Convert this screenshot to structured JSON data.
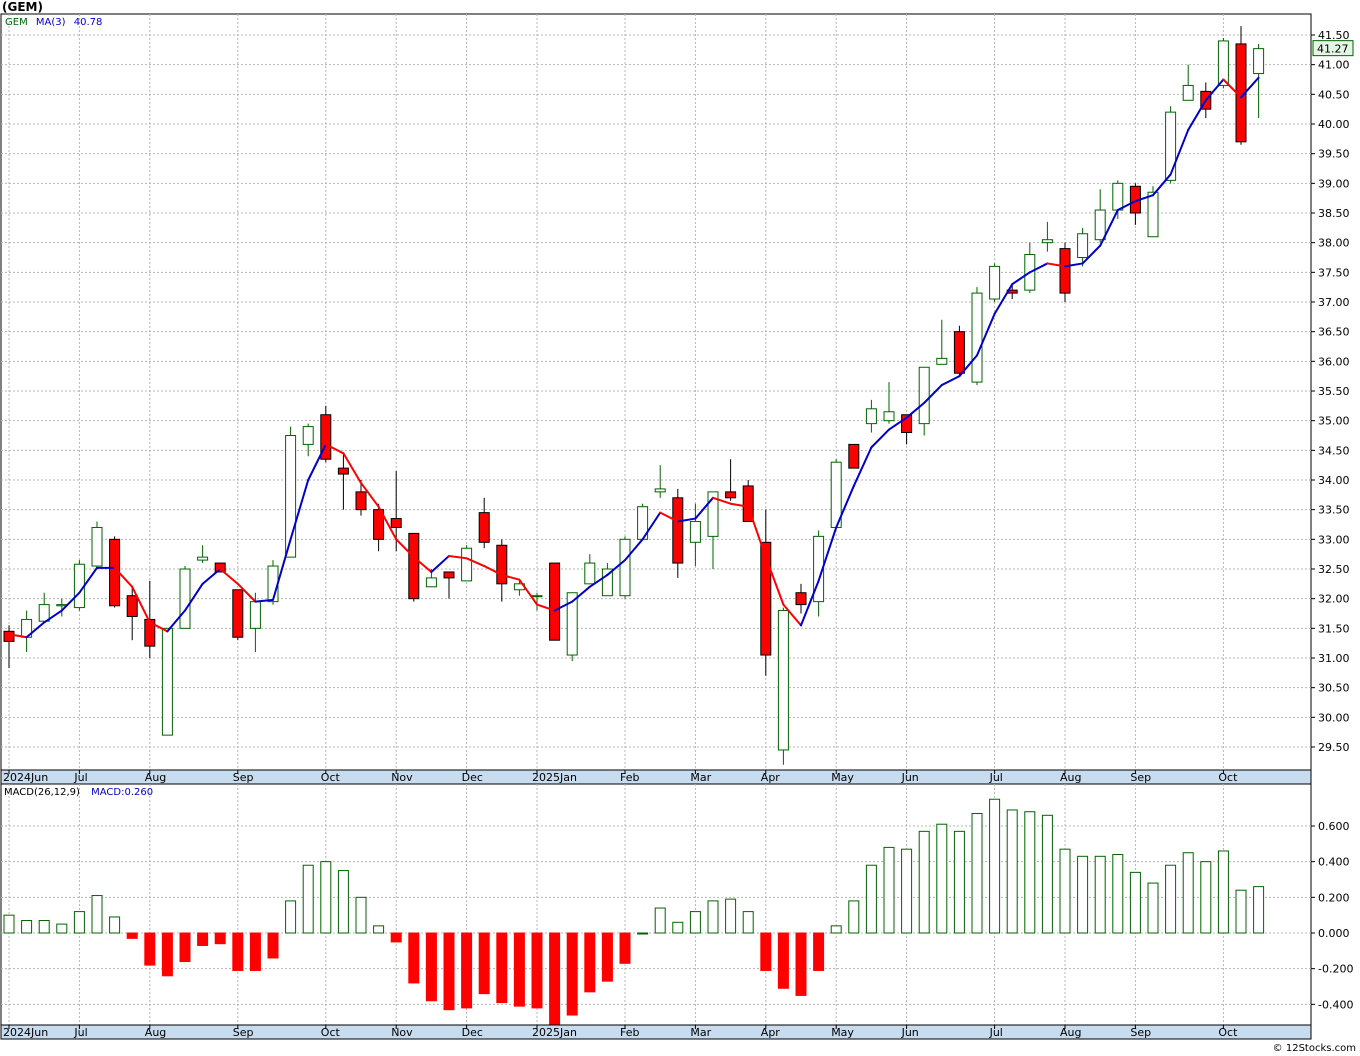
{
  "symbol_title": "(GEM)",
  "credit": "© 12Stocks.com",
  "price_panel": {
    "legend_symbol": "GEM",
    "legend_ma_label": "MA(3)",
    "legend_ma_value": "40.78",
    "last_price_label": "41.27",
    "y_ticks": [
      "29.50",
      "30.00",
      "30.50",
      "31.00",
      "31.50",
      "32.00",
      "32.50",
      "33.00",
      "33.50",
      "34.00",
      "34.50",
      "35.00",
      "35.50",
      "36.00",
      "36.50",
      "37.00",
      "37.50",
      "38.00",
      "38.50",
      "39.00",
      "39.50",
      "40.00",
      "40.50",
      "41.00",
      "41.50"
    ],
    "x_labels": [
      "2024Jun",
      "Jul",
      "Aug",
      "Sep",
      "Oct",
      "Nov",
      "Dec",
      "2025Jan",
      "Feb",
      "Mar",
      "Apr",
      "May",
      "Jun",
      "Jul",
      "Aug",
      "Sep",
      "Oct"
    ]
  },
  "macd_panel": {
    "legend_label": "MACD(26,12,9)",
    "legend_value": "MACD:0.260",
    "y_ticks": [
      "-0.400",
      "-0.200",
      "0.000",
      "0.200",
      "0.400",
      "0.600"
    ],
    "x_labels": [
      "2024Jun",
      "Jul",
      "Aug",
      "Sep",
      "Oct",
      "Nov",
      "Dec",
      "2025Jan",
      "Feb",
      "Mar",
      "Apr",
      "May",
      "Jun",
      "Jul",
      "Aug",
      "Sep",
      "Oct"
    ]
  },
  "colors": {
    "up": "#006400",
    "down": "#ff0000",
    "ma_up": "#0000cc",
    "ma_down": "#ff0000",
    "axis_band": "#c8dcf0",
    "grid": "#b4b4b4",
    "last_price_bg": "#e6f5e6"
  },
  "chart_data": [
    {
      "type": "candlestick",
      "title": "(GEM)",
      "interval": "weekly",
      "x_labels": [
        "2024Jun",
        "Jul",
        "Aug",
        "Sep",
        "Oct",
        "Nov",
        "Dec",
        "2025Jan",
        "Feb",
        "Mar",
        "Apr",
        "May",
        "Jun",
        "Jul",
        "Aug",
        "Sep",
        "Oct"
      ],
      "ylim": [
        29.2,
        41.7
      ],
      "ma_label": "MA(3)",
      "ma_last": 40.78,
      "last_price": 41.27,
      "candles": [
        {
          "o": 31.45,
          "h": 31.55,
          "l": 30.83,
          "c": 31.28
        },
        {
          "o": 31.35,
          "h": 31.8,
          "l": 31.1,
          "c": 31.65
        },
        {
          "o": 31.62,
          "h": 32.1,
          "l": 31.6,
          "c": 31.9
        },
        {
          "o": 31.88,
          "h": 32.0,
          "l": 31.7,
          "c": 31.9
        },
        {
          "o": 31.85,
          "h": 32.65,
          "l": 31.8,
          "c": 32.58
        },
        {
          "o": 32.55,
          "h": 33.3,
          "l": 32.5,
          "c": 33.2
        },
        {
          "o": 33.0,
          "h": 33.05,
          "l": 31.85,
          "c": 31.88
        },
        {
          "o": 32.05,
          "h": 32.2,
          "l": 31.3,
          "c": 31.7
        },
        {
          "o": 31.65,
          "h": 32.3,
          "l": 31.0,
          "c": 31.2
        },
        {
          "o": 29.7,
          "h": 31.5,
          "l": 29.7,
          "c": 31.5
        },
        {
          "o": 31.5,
          "h": 32.55,
          "l": 31.5,
          "c": 32.5
        },
        {
          "o": 32.65,
          "h": 32.9,
          "l": 32.6,
          "c": 32.7
        },
        {
          "o": 32.6,
          "h": 32.6,
          "l": 32.45,
          "c": 32.45
        },
        {
          "o": 32.15,
          "h": 32.15,
          "l": 31.3,
          "c": 31.35
        },
        {
          "o": 31.5,
          "h": 32.1,
          "l": 31.1,
          "c": 31.95
        },
        {
          "o": 31.95,
          "h": 32.65,
          "l": 31.9,
          "c": 32.55
        },
        {
          "o": 32.7,
          "h": 34.9,
          "l": 32.7,
          "c": 34.75
        },
        {
          "o": 34.6,
          "h": 34.95,
          "l": 34.4,
          "c": 34.9
        },
        {
          "o": 35.1,
          "h": 35.25,
          "l": 34.3,
          "c": 34.35
        },
        {
          "o": 34.2,
          "h": 34.45,
          "l": 33.5,
          "c": 34.1
        },
        {
          "o": 33.8,
          "h": 34.0,
          "l": 33.4,
          "c": 33.5
        },
        {
          "o": 33.5,
          "h": 33.6,
          "l": 32.8,
          "c": 33.0
        },
        {
          "o": 33.35,
          "h": 34.15,
          "l": 32.8,
          "c": 33.2
        },
        {
          "o": 33.1,
          "h": 33.1,
          "l": 31.95,
          "c": 32.0
        },
        {
          "o": 32.2,
          "h": 32.5,
          "l": 32.2,
          "c": 32.35
        },
        {
          "o": 32.45,
          "h": 32.45,
          "l": 32.0,
          "c": 32.35
        },
        {
          "o": 32.3,
          "h": 32.9,
          "l": 32.3,
          "c": 32.85
        },
        {
          "o": 33.45,
          "h": 33.7,
          "l": 32.85,
          "c": 32.95
        },
        {
          "o": 32.9,
          "h": 33.0,
          "l": 31.95,
          "c": 32.25
        },
        {
          "o": 32.15,
          "h": 32.3,
          "l": 32.05,
          "c": 32.25
        },
        {
          "o": 32.05,
          "h": 32.1,
          "l": 31.8,
          "c": 32.05
        },
        {
          "o": 32.6,
          "h": 32.6,
          "l": 31.3,
          "c": 31.3
        },
        {
          "o": 31.05,
          "h": 32.1,
          "l": 30.95,
          "c": 32.1
        },
        {
          "o": 32.25,
          "h": 32.75,
          "l": 32.25,
          "c": 32.6
        },
        {
          "o": 32.05,
          "h": 32.6,
          "l": 32.05,
          "c": 32.5
        },
        {
          "o": 32.05,
          "h": 33.05,
          "l": 32.0,
          "c": 33.0
        },
        {
          "o": 33.0,
          "h": 33.6,
          "l": 33.0,
          "c": 33.55
        },
        {
          "o": 33.8,
          "h": 34.25,
          "l": 33.7,
          "c": 33.85
        },
        {
          "o": 33.7,
          "h": 33.85,
          "l": 32.35,
          "c": 32.6
        },
        {
          "o": 32.95,
          "h": 33.6,
          "l": 32.55,
          "c": 33.3
        },
        {
          "o": 33.05,
          "h": 33.8,
          "l": 32.5,
          "c": 33.8
        },
        {
          "o": 33.8,
          "h": 34.35,
          "l": 33.65,
          "c": 33.7
        },
        {
          "o": 33.9,
          "h": 34.0,
          "l": 33.3,
          "c": 33.3
        },
        {
          "o": 32.95,
          "h": 33.5,
          "l": 30.7,
          "c": 31.05
        },
        {
          "o": 29.45,
          "h": 31.85,
          "l": 29.2,
          "c": 31.8
        },
        {
          "o": 32.1,
          "h": 32.25,
          "l": 31.75,
          "c": 31.9
        },
        {
          "o": 31.95,
          "h": 33.15,
          "l": 31.7,
          "c": 33.05
        },
        {
          "o": 33.2,
          "h": 34.35,
          "l": 33.2,
          "c": 34.3
        },
        {
          "o": 34.6,
          "h": 34.6,
          "l": 34.2,
          "c": 34.2
        },
        {
          "o": 34.95,
          "h": 35.35,
          "l": 34.8,
          "c": 35.2
        },
        {
          "o": 35.0,
          "h": 35.65,
          "l": 34.95,
          "c": 35.15
        },
        {
          "o": 35.1,
          "h": 35.1,
          "l": 34.6,
          "c": 34.8
        },
        {
          "o": 34.95,
          "h": 35.9,
          "l": 34.75,
          "c": 35.9
        },
        {
          "o": 35.95,
          "h": 36.7,
          "l": 35.95,
          "c": 36.05
        },
        {
          "o": 36.5,
          "h": 36.6,
          "l": 35.75,
          "c": 35.8
        },
        {
          "o": 35.65,
          "h": 37.25,
          "l": 35.6,
          "c": 37.15
        },
        {
          "o": 37.05,
          "h": 37.65,
          "l": 37.0,
          "c": 37.6
        },
        {
          "o": 37.2,
          "h": 37.3,
          "l": 37.05,
          "c": 37.15
        },
        {
          "o": 37.2,
          "h": 38.0,
          "l": 37.15,
          "c": 37.8
        },
        {
          "o": 38.0,
          "h": 38.35,
          "l": 37.85,
          "c": 38.05
        },
        {
          "o": 37.9,
          "h": 38.0,
          "l": 37.0,
          "c": 37.15
        },
        {
          "o": 37.75,
          "h": 38.25,
          "l": 37.6,
          "c": 38.15
        },
        {
          "o": 38.05,
          "h": 38.9,
          "l": 38.0,
          "c": 38.55
        },
        {
          "o": 38.55,
          "h": 39.05,
          "l": 38.4,
          "c": 39.0
        },
        {
          "o": 38.95,
          "h": 39.0,
          "l": 38.3,
          "c": 38.5
        },
        {
          "o": 38.1,
          "h": 38.95,
          "l": 38.1,
          "c": 38.85
        },
        {
          "o": 39.05,
          "h": 40.3,
          "l": 39.0,
          "c": 40.2
        },
        {
          "o": 40.4,
          "h": 41.0,
          "l": 40.4,
          "c": 40.65
        },
        {
          "o": 40.55,
          "h": 40.7,
          "l": 40.1,
          "c": 40.25
        },
        {
          "o": 40.65,
          "h": 41.45,
          "l": 40.6,
          "c": 41.4
        },
        {
          "o": 41.35,
          "h": 41.65,
          "l": 39.65,
          "c": 39.7
        },
        {
          "o": 40.85,
          "h": 41.35,
          "l": 40.1,
          "c": 41.27
        }
      ],
      "ma": [
        31.4,
        31.35,
        31.6,
        31.8,
        32.1,
        32.52,
        32.52,
        32.2,
        31.6,
        31.45,
        31.8,
        32.25,
        32.5,
        32.25,
        31.95,
        31.98,
        33.0,
        34.0,
        34.6,
        34.45,
        33.95,
        33.55,
        33.0,
        32.7,
        32.45,
        32.72,
        32.68,
        32.55,
        32.4,
        32.32,
        31.9,
        31.8,
        31.95,
        32.2,
        32.4,
        32.65,
        33.0,
        33.45,
        33.3,
        33.35,
        33.7,
        33.6,
        33.55,
        32.7,
        31.9,
        31.55,
        32.3,
        33.2,
        33.9,
        34.55,
        34.85,
        35.05,
        35.3,
        35.6,
        35.75,
        36.1,
        36.8,
        37.3,
        37.5,
        37.65,
        37.6,
        37.65,
        37.95,
        38.55,
        38.7,
        38.8,
        39.15,
        39.9,
        40.4,
        40.75,
        40.45,
        40.78
      ]
    },
    {
      "type": "bar",
      "title": "MACD(26,12,9)",
      "series_label": "MACD:0.260",
      "x_labels": [
        "2024Jun",
        "Jul",
        "Aug",
        "Sep",
        "Oct",
        "Nov",
        "Dec",
        "2025Jan",
        "Feb",
        "Mar",
        "Apr",
        "May",
        "Jun",
        "Jul",
        "Aug",
        "Sep",
        "Oct"
      ],
      "ylim": [
        -0.52,
        0.78
      ],
      "values": [
        0.1,
        0.07,
        0.07,
        0.05,
        0.12,
        0.21,
        0.09,
        -0.03,
        -0.18,
        -0.24,
        -0.16,
        -0.07,
        -0.06,
        -0.21,
        -0.21,
        -0.14,
        0.18,
        0.38,
        0.4,
        0.35,
        0.2,
        0.04,
        -0.05,
        -0.28,
        -0.38,
        -0.43,
        -0.42,
        -0.34,
        -0.39,
        -0.41,
        -0.42,
        -0.52,
        -0.46,
        -0.33,
        -0.27,
        -0.17,
        0.0,
        0.14,
        0.06,
        0.12,
        0.18,
        0.19,
        0.12,
        -0.21,
        -0.31,
        -0.35,
        -0.21,
        0.04,
        0.18,
        0.38,
        0.48,
        0.47,
        0.57,
        0.61,
        0.57,
        0.67,
        0.75,
        0.69,
        0.68,
        0.66,
        0.47,
        0.43,
        0.43,
        0.44,
        0.34,
        0.28,
        0.38,
        0.45,
        0.4,
        0.46,
        0.24,
        0.26
      ]
    }
  ]
}
